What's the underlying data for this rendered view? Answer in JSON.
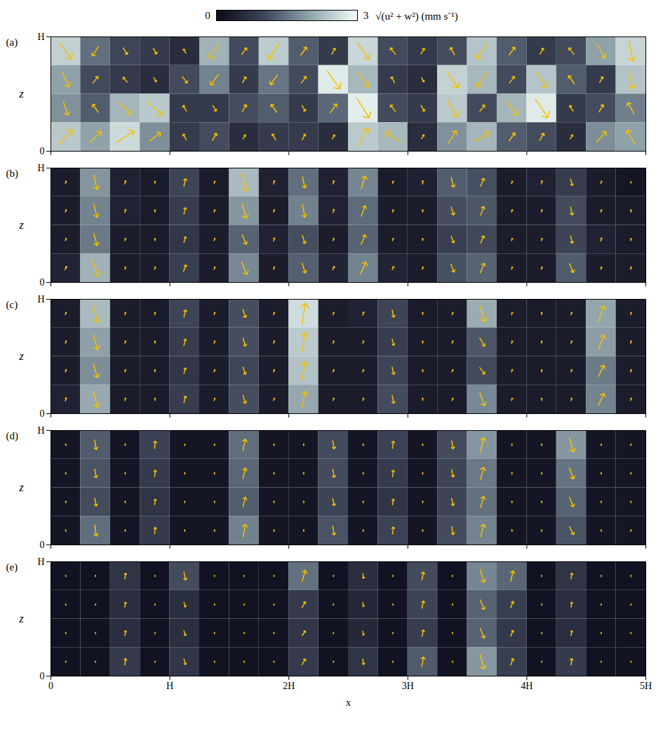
{
  "colorbar": {
    "range": [
      0,
      3
    ],
    "ticks": [
      0,
      3
    ],
    "label": "√(u² + w²) (mm s⁻¹)",
    "colors": [
      "#0b0b18",
      "#3c4258",
      "#8fa6ad",
      "#f4fbf8"
    ]
  },
  "chart_data": [
    {
      "type": "vector_field",
      "title": "(a)",
      "y_label": "z",
      "tick_labels": "y",
      "color": "#f2c200",
      "xlim": [
        0,
        5
      ],
      "ylim": [
        0,
        1
      ],
      "xticks": [
        0,
        {
          "value": 1,
          "label": "H"
        },
        {
          "value": 2,
          "label": "2H"
        },
        {
          "value": 3,
          "label": "3H"
        },
        {
          "value": 4,
          "label": "4H"
        },
        {
          "value": 5,
          "label": "5H"
        }
      ],
      "yticks": [
        0,
        {
          "value": 1,
          "label": "H"
        }
      ],
      "x": [
        0.125,
        0.375,
        0.625,
        0.875,
        1.125,
        1.375,
        1.625,
        1.875,
        2.125,
        2.375,
        2.625,
        2.875,
        3.125,
        3.375,
        3.625,
        3.875,
        4.125,
        4.375,
        4.625,
        4.875
      ],
      "z": [
        0.875,
        0.625,
        0.375,
        0.125
      ],
      "u": [
        [
          1.5,
          -0.8,
          0.5,
          0.4,
          -0.3,
          -1.2,
          0.6,
          -1.4,
          0.7,
          0.4,
          1.5,
          -0.6,
          0.4,
          -0.5,
          -1.4,
          0.7,
          0.4,
          -0.6,
          1.0,
          0.5
        ],
        [
          0.8,
          0.6,
          -0.5,
          0.3,
          0.6,
          -1.0,
          0.4,
          -0.9,
          0.6,
          1.6,
          1.3,
          -0.4,
          0.3,
          1.4,
          -1.3,
          0.6,
          1.4,
          -0.7,
          0.4,
          0.5
        ],
        [
          0.6,
          -0.7,
          1.6,
          1.8,
          -0.4,
          0.4,
          0.5,
          -0.7,
          0.4,
          0.8,
          1.5,
          -0.6,
          0.4,
          1.2,
          0.6,
          1.4,
          1.6,
          -0.4,
          0.5,
          -0.8
        ],
        [
          1.6,
          1.4,
          2.2,
          1.4,
          -0.4,
          0.5,
          0.3,
          -0.4,
          0.4,
          0.3,
          1.2,
          -1.8,
          0.3,
          1.0,
          1.9,
          0.7,
          0.5,
          0.3,
          1.2,
          -1.0
        ]
      ],
      "w": [
        [
          -2.0,
          -1.2,
          -0.8,
          -0.7,
          0.5,
          -1.8,
          0.8,
          -2.0,
          1.0,
          0.7,
          -2.1,
          0.8,
          0.7,
          0.9,
          -1.9,
          1.0,
          0.7,
          0.8,
          -1.7,
          -2.5
        ],
        [
          -1.8,
          0.8,
          0.6,
          -0.5,
          -0.8,
          -1.3,
          0.7,
          -1.2,
          0.8,
          -2.3,
          -1.8,
          0.7,
          -0.5,
          -2.1,
          -1.8,
          0.8,
          -1.9,
          1.0,
          0.7,
          -2.3
        ],
        [
          -1.7,
          1.0,
          -1.5,
          -1.6,
          0.7,
          -0.7,
          0.9,
          1.0,
          -0.7,
          1.1,
          -2.4,
          0.8,
          -0.7,
          -2.1,
          0.8,
          -1.7,
          -2.3,
          0.7,
          0.9,
          1.4
        ],
        [
          1.8,
          1.4,
          1.4,
          1.1,
          0.7,
          0.9,
          0.5,
          0.7,
          0.7,
          0.5,
          2.1,
          1.3,
          0.5,
          1.5,
          1.1,
          1.0,
          0.9,
          0.5,
          1.3,
          1.7
        ]
      ]
    },
    {
      "type": "vector_field",
      "title": "(b)",
      "y_label": "z",
      "tick_labels": "y",
      "color": "#f2c200",
      "xlim": [
        0,
        5
      ],
      "ylim": [
        0,
        1
      ],
      "xticks": [
        0,
        {
          "value": 1,
          "label": "H"
        },
        {
          "value": 2,
          "label": "2H"
        },
        {
          "value": 3,
          "label": "3H"
        },
        {
          "value": 4,
          "label": "4H"
        },
        {
          "value": 5,
          "label": "5H"
        }
      ],
      "yticks": [
        0,
        {
          "value": 1,
          "label": "H"
        }
      ],
      "x": [
        0.125,
        0.375,
        0.625,
        0.875,
        1.125,
        1.375,
        1.625,
        1.875,
        2.125,
        2.375,
        2.625,
        2.875,
        3.125,
        3.375,
        3.625,
        3.875,
        4.125,
        4.375,
        4.625,
        4.875
      ],
      "z": [
        0.875,
        0.625,
        0.375,
        0.125
      ],
      "u": [
        [
          0.1,
          0.4,
          0.1,
          0,
          0.2,
          0.1,
          0.5,
          0.1,
          0.3,
          0.1,
          0.5,
          0.1,
          0,
          0.3,
          0.4,
          0.1,
          0.1,
          0.2,
          0.1,
          0
        ],
        [
          0.1,
          0.4,
          0.1,
          0,
          0.2,
          0.1,
          0.5,
          0.1,
          0.3,
          0.1,
          0.5,
          0.1,
          0,
          0.3,
          0.4,
          0.1,
          0.1,
          0.2,
          0.1,
          0
        ],
        [
          0.1,
          0.4,
          0.1,
          0,
          0.2,
          0.1,
          0.5,
          0.1,
          0.3,
          0.1,
          0.5,
          0.1,
          0,
          0.3,
          0.4,
          0.1,
          0.1,
          0.2,
          0.1,
          0
        ],
        [
          0.2,
          0.8,
          0.1,
          0.1,
          0.3,
          0.1,
          0.6,
          0.1,
          0.4,
          0.2,
          0.7,
          0.2,
          0.1,
          0.4,
          0.5,
          0.1,
          0.1,
          0.5,
          0.1,
          0.1
        ]
      ],
      "w": [
        [
          0.3,
          -1.8,
          0.4,
          0.3,
          0.9,
          0.3,
          -2.2,
          0.4,
          -1.4,
          0.4,
          1.6,
          0.3,
          0.4,
          -1.2,
          1.0,
          0.3,
          0.4,
          -0.8,
          0.3,
          0.2
        ],
        [
          0.3,
          -1.6,
          0.4,
          0.3,
          0.8,
          0.3,
          -1.8,
          0.3,
          -1.6,
          0.4,
          1.3,
          0.3,
          0.3,
          -1.0,
          1.1,
          0.3,
          0.3,
          -1.0,
          0.3,
          0.3
        ],
        [
          0.3,
          -1.5,
          0.3,
          0.3,
          0.7,
          0.3,
          -1.2,
          0.4,
          -1.0,
          0.3,
          1.2,
          0.3,
          0.3,
          -0.8,
          0.9,
          0.3,
          0.3,
          -0.9,
          0.4,
          0.3
        ],
        [
          0.4,
          -2.0,
          0.3,
          0.3,
          0.8,
          0.3,
          -1.6,
          0.3,
          -1.2,
          0.4,
          1.5,
          0.4,
          0.3,
          -1.0,
          1.2,
          0.3,
          0.3,
          -1.1,
          0.3,
          0.3
        ]
      ]
    },
    {
      "type": "vector_field",
      "title": "(c)",
      "y_label": "z",
      "tick_labels": "y",
      "color": "#f2c200",
      "xlim": [
        0,
        5
      ],
      "ylim": [
        0,
        1
      ],
      "xticks": [
        0,
        {
          "value": 1,
          "label": "H"
        },
        {
          "value": 2,
          "label": "2H"
        },
        {
          "value": 3,
          "label": "3H"
        },
        {
          "value": 4,
          "label": "4H"
        },
        {
          "value": 5,
          "label": "5H"
        }
      ],
      "yticks": [
        0,
        {
          "value": 1,
          "label": "H"
        }
      ],
      "x": [
        0.125,
        0.375,
        0.625,
        0.875,
        1.125,
        1.375,
        1.625,
        1.875,
        2.125,
        2.375,
        2.625,
        2.875,
        3.125,
        3.375,
        3.625,
        3.875,
        4.125,
        4.375,
        4.625,
        4.875
      ],
      "z": [
        0.875,
        0.625,
        0.375,
        0.125
      ],
      "u": [
        [
          0.1,
          0.5,
          0.1,
          0,
          0.2,
          0.1,
          0.3,
          0.1,
          0.4,
          0.1,
          0.1,
          0.2,
          0,
          0.1,
          0.6,
          0.1,
          0,
          0.1,
          0.7,
          0.1
        ],
        [
          0.1,
          0.5,
          0.1,
          0,
          0.2,
          0.1,
          0.3,
          0.1,
          0.4,
          0.1,
          0.1,
          0.2,
          0,
          0.1,
          0.6,
          0.1,
          0,
          0.1,
          0.7,
          0.1
        ],
        [
          0.1,
          0.5,
          0.1,
          0,
          0.2,
          0.1,
          0.3,
          0.1,
          0.4,
          0.1,
          0.1,
          0.2,
          0,
          0.1,
          0.6,
          0.1,
          0,
          0.1,
          0.7,
          0.1
        ],
        [
          0.1,
          0.5,
          0.1,
          0,
          0.2,
          0.1,
          0.3,
          0.1,
          0.4,
          0.1,
          0.1,
          0.2,
          0,
          0.1,
          0.6,
          0.1,
          0,
          0.1,
          0.7,
          0.1
        ]
      ],
      "w": [
        [
          0.3,
          -2.2,
          0.3,
          0.3,
          0.9,
          0.3,
          -1.0,
          0.3,
          2.6,
          0.3,
          0.4,
          -0.9,
          0.3,
          0.3,
          -2.0,
          0.3,
          0.3,
          0.3,
          1.9,
          0.3
        ],
        [
          0.3,
          -1.9,
          0.3,
          0.3,
          0.8,
          0.3,
          -1.0,
          0.3,
          2.4,
          0.3,
          0.3,
          -0.8,
          0.3,
          0.3,
          -1.0,
          0.3,
          0.3,
          0.3,
          1.8,
          0.3
        ],
        [
          0.3,
          -1.7,
          0.3,
          0.3,
          0.7,
          0.3,
          -0.9,
          0.3,
          2.3,
          0.3,
          0.3,
          -0.9,
          0.3,
          0.3,
          -0.8,
          0.3,
          0.3,
          0.3,
          1.4,
          0.3
        ],
        [
          0.4,
          -2.0,
          0.3,
          0.3,
          0.8,
          0.3,
          -1.0,
          0.3,
          2.0,
          0.3,
          0.3,
          -1.0,
          0.3,
          0.3,
          -1.6,
          0.3,
          0.3,
          0.3,
          1.5,
          0.3
        ]
      ]
    },
    {
      "type": "vector_field",
      "title": "(d)",
      "y_label": "z",
      "tick_labels": "y",
      "color": "#f2c200",
      "xlim": [
        0,
        5
      ],
      "ylim": [
        0,
        1
      ],
      "xticks": [
        0,
        {
          "value": 1,
          "label": "H"
        },
        {
          "value": 2,
          "label": "2H"
        },
        {
          "value": 3,
          "label": "3H"
        },
        {
          "value": 4,
          "label": "4H"
        },
        {
          "value": 5,
          "label": "5H"
        }
      ],
      "yticks": [
        0,
        {
          "value": 1,
          "label": "H"
        }
      ],
      "x": [
        0.125,
        0.375,
        0.625,
        0.875,
        1.125,
        1.375,
        1.625,
        1.875,
        2.125,
        2.375,
        2.625,
        2.875,
        3.125,
        3.375,
        3.625,
        3.875,
        4.125,
        4.375,
        4.625,
        4.875
      ],
      "z": [
        0.875,
        0.625,
        0.375,
        0.125
      ],
      "u": [
        [
          0,
          0.2,
          0,
          0.1,
          0,
          0,
          0.3,
          0,
          0,
          0.2,
          0,
          0.1,
          0,
          0.2,
          0.4,
          0,
          0,
          0.5,
          0,
          0
        ],
        [
          0,
          0.2,
          0,
          0.1,
          0,
          0,
          0.3,
          0,
          0,
          0.2,
          0,
          0.1,
          0,
          0.2,
          0.4,
          0,
          0,
          0.5,
          0,
          0
        ],
        [
          0,
          0.2,
          0,
          0.1,
          0,
          0,
          0.3,
          0,
          0,
          0.2,
          0,
          0.1,
          0,
          0.2,
          0.4,
          0,
          0,
          0.5,
          0,
          0
        ],
        [
          0,
          0.2,
          0,
          0.1,
          0,
          0,
          0.3,
          0,
          0,
          0.2,
          0,
          0.1,
          0,
          0.2,
          0.4,
          0,
          0,
          0.5,
          0,
          0
        ]
      ],
      "w": [
        [
          0.2,
          -1.2,
          0.2,
          0.9,
          0.2,
          0.2,
          1.4,
          0.2,
          0.2,
          -1.0,
          0.2,
          0.9,
          0.2,
          -1.0,
          1.8,
          0.2,
          0.2,
          -1.8,
          0.2,
          0.2
        ],
        [
          0.2,
          -1.1,
          0.2,
          0.8,
          0.2,
          0.2,
          1.3,
          0.2,
          0.2,
          -1.0,
          0.2,
          0.8,
          0.2,
          -0.9,
          1.5,
          0.2,
          0.2,
          -1.4,
          0.2,
          0.2
        ],
        [
          0.2,
          -1.0,
          0.2,
          0.7,
          0.2,
          0.2,
          1.2,
          0.2,
          0.2,
          -0.9,
          0.2,
          0.7,
          0.2,
          -0.9,
          1.4,
          0.2,
          0.2,
          -1.2,
          0.2,
          0.2
        ],
        [
          0.2,
          -1.4,
          0.2,
          0.8,
          0.2,
          0.2,
          1.6,
          0.2,
          0.2,
          -1.1,
          0.2,
          0.9,
          0.2,
          -1.0,
          1.6,
          0.2,
          0.2,
          -1.0,
          0.2,
          0.2
        ]
      ]
    },
    {
      "type": "vector_field",
      "title": "(e)",
      "x_label": "x",
      "y_label": "z",
      "color": "#f2c200",
      "xlim": [
        0,
        5
      ],
      "ylim": [
        0,
        1
      ],
      "xticks": [
        0,
        {
          "value": 1,
          "label": "H"
        },
        {
          "value": 2,
          "label": "2H"
        },
        {
          "value": 3,
          "label": "3H"
        },
        {
          "value": 4,
          "label": "4H"
        },
        {
          "value": 5,
          "label": "5H"
        }
      ],
      "yticks": [
        0,
        {
          "value": 1,
          "label": "H"
        }
      ],
      "x": [
        0.125,
        0.375,
        0.625,
        0.875,
        1.125,
        1.375,
        1.625,
        1.875,
        2.125,
        2.375,
        2.625,
        2.875,
        3.125,
        3.375,
        3.625,
        3.875,
        4.125,
        4.375,
        4.625,
        4.875
      ],
      "z": [
        0.875,
        0.625,
        0.375,
        0.125
      ],
      "u": [
        [
          0,
          0,
          0.1,
          0,
          0.2,
          0,
          0,
          0,
          0.4,
          0,
          0.1,
          0,
          0.2,
          0,
          0.5,
          0.3,
          0,
          0.1,
          0,
          0
        ],
        [
          0,
          0,
          0.1,
          0,
          0.2,
          0,
          0,
          0,
          0.4,
          0,
          0.1,
          0,
          0.2,
          0,
          0.5,
          0.3,
          0,
          0.1,
          0,
          0
        ],
        [
          0,
          0,
          0.1,
          0,
          0.2,
          0,
          0,
          0,
          0.4,
          0,
          0.1,
          0,
          0.2,
          0,
          0.5,
          0.3,
          0,
          0.1,
          0,
          0
        ],
        [
          0,
          0,
          0.1,
          0,
          0.2,
          0,
          0,
          0,
          0.4,
          0,
          0.1,
          0,
          0.2,
          0,
          0.5,
          0.3,
          0,
          0.1,
          0,
          0
        ]
      ],
      "w": [
        [
          0.15,
          0.15,
          0.7,
          0.15,
          -1.0,
          0.15,
          0.15,
          0.15,
          1.4,
          0.15,
          -0.6,
          0.15,
          1.0,
          0.15,
          -1.6,
          1.3,
          0.15,
          0.7,
          0.15,
          0.15
        ],
        [
          0.15,
          0.15,
          0.6,
          0.15,
          -0.6,
          0.15,
          0.15,
          0.15,
          0.7,
          0.15,
          -0.5,
          0.15,
          0.9,
          0.15,
          -1.2,
          0.8,
          0.15,
          0.6,
          0.15,
          0.15
        ],
        [
          0.15,
          0.15,
          0.6,
          0.15,
          -0.6,
          0.15,
          0.15,
          0.15,
          0.6,
          0.15,
          -0.5,
          0.15,
          0.8,
          0.15,
          -1.2,
          0.7,
          0.15,
          0.6,
          0.15,
          0.15
        ],
        [
          0.15,
          0.15,
          0.8,
          0.15,
          -0.7,
          0.15,
          0.15,
          0.15,
          0.7,
          0.15,
          -0.7,
          0.15,
          1.2,
          0.15,
          -1.8,
          0.8,
          0.15,
          0.8,
          0.15,
          0.15
        ]
      ]
    }
  ]
}
